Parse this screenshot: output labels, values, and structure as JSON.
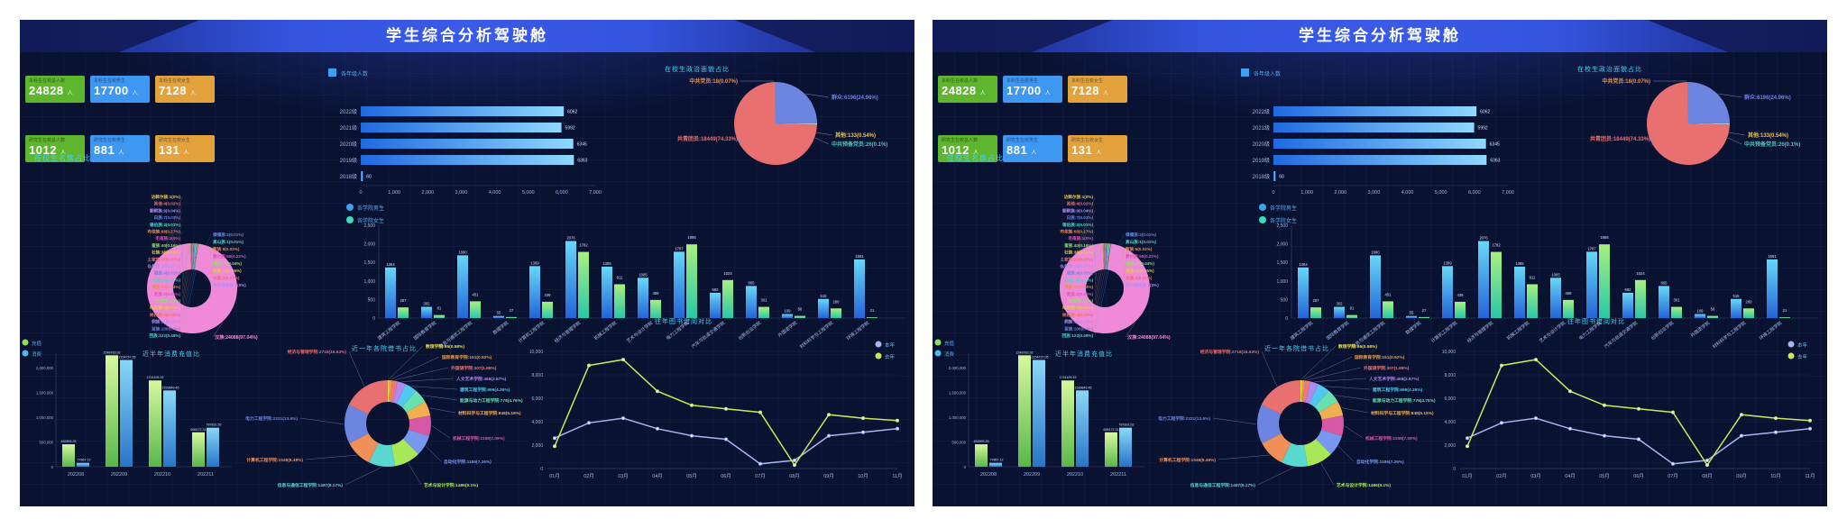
{
  "title": "学生综合分析驾驶舱",
  "unit_person": "人",
  "kpi_cards": [
    {
      "label": "本科生在校总人数",
      "value": "24828",
      "color": "green"
    },
    {
      "label": "本科生在校男生",
      "value": "17700",
      "color": "blue"
    },
    {
      "label": "本科生在校女生",
      "value": "7128",
      "color": "orange"
    },
    {
      "label": "研究生在校总人数",
      "value": "1012",
      "color": "green"
    },
    {
      "label": "研究生在校男生",
      "value": "881",
      "color": "blue"
    },
    {
      "label": "研究生在校女生",
      "value": "131",
      "color": "orange"
    }
  ],
  "chart_titles": {
    "politics": "在校生政治面貌占比",
    "ethnic": "在校生名族占比",
    "recharge": "近半年消费充值比",
    "borrow": "近一年各院借书占比",
    "library": "往年图书借阅对比"
  },
  "chart_data": [
    {
      "id": "grade",
      "type": "bar",
      "orientation": "horizontal",
      "legend": "各年级人数",
      "categories": [
        "2022级",
        "2021级",
        "2020级",
        "2019级",
        "2018级"
      ],
      "values": [
        6062,
        5992,
        6345,
        6363,
        60
      ],
      "xlim": [
        0,
        7000
      ],
      "xticks": [
        "0",
        "1,000",
        "2,000",
        "3,000",
        "4,000",
        "5,000",
        "6,000",
        "7,000"
      ]
    },
    {
      "id": "politics",
      "type": "pie",
      "title": "在校生政治面貌占比",
      "slices": [
        {
          "name": "群众",
          "value": 6196,
          "pct": "24.96%",
          "color": "#6b85e0"
        },
        {
          "name": "其他",
          "value": 133,
          "pct": "0.54%",
          "color": "#e8c84a"
        },
        {
          "name": "中共预备党员",
          "value": 26,
          "pct": "0.1%",
          "color": "#48c8b8"
        },
        {
          "name": "共青团员",
          "value": 18449,
          "pct": "74.33%",
          "color": "#e87070"
        },
        {
          "name": "中共党员",
          "value": 18,
          "pct": "0.07%",
          "color": "#e8904a"
        }
      ]
    },
    {
      "id": "ethnic",
      "type": "pie",
      "title": "在校生名族占比",
      "main_color": "#f08ad8",
      "slices": [
        {
          "name": "达斡尔族",
          "value": 1,
          "pct": "0%",
          "side": "L"
        },
        {
          "name": "其他",
          "value": 4,
          "pct": "0.02%",
          "side": "L"
        },
        {
          "name": "朝鲜族",
          "value": 9,
          "pct": "0.04%",
          "side": "L"
        },
        {
          "name": "白族",
          "value": 7,
          "pct": "0.03%",
          "side": "L"
        },
        {
          "name": "锡伯族",
          "value": 3,
          "pct": "0.01%",
          "side": "L"
        },
        {
          "name": "布依族",
          "value": 68,
          "pct": "0.27%",
          "side": "L"
        },
        {
          "name": "毛南族",
          "value": 1,
          "pct": "0%",
          "side": "L"
        },
        {
          "name": "畲族",
          "value": 40,
          "pct": "0.16%",
          "side": "L"
        },
        {
          "name": "壮族",
          "value": 38,
          "pct": "0.15%",
          "side": "L"
        },
        {
          "name": "土家族",
          "value": 92,
          "pct": "0.37%",
          "side": "L"
        },
        {
          "name": "仫佬族",
          "value": 18,
          "pct": "0.07%",
          "side": "L"
        },
        {
          "name": "瑶族",
          "value": 4,
          "pct": "0.02%",
          "side": "L"
        },
        {
          "name": "其他",
          "value": 14,
          "pct": "0.06%",
          "side": "L"
        },
        {
          "name": "满族",
          "value": 85,
          "pct": "0.34%",
          "side": "L"
        },
        {
          "name": "羌族",
          "value": 2,
          "pct": "0.01%",
          "side": "L"
        },
        {
          "name": "仡佬族",
          "value": 1,
          "pct": "0%",
          "side": "L"
        },
        {
          "name": "哈尼族",
          "value": 3,
          "pct": "0.01%",
          "side": "L"
        },
        {
          "name": "纳西族",
          "value": 4,
          "pct": "0.02%",
          "side": "L"
        },
        {
          "name": "侗族",
          "value": 31,
          "pct": "0.13%",
          "side": "L"
        },
        {
          "name": "苗族",
          "value": 100,
          "pct": "0.4%",
          "side": "L"
        },
        {
          "name": "回族",
          "value": 122,
          "pct": "0.49%",
          "side": "L"
        },
        {
          "name": "傈僳族",
          "value": 2,
          "pct": "0.01%",
          "side": "R"
        },
        {
          "name": "高山族",
          "value": 1,
          "pct": "0.01%",
          "side": "R"
        },
        {
          "name": "黎族",
          "value": 5,
          "pct": "0.02%",
          "side": "R"
        },
        {
          "name": "蒙古族",
          "value": 55,
          "pct": "0.22%",
          "side": "R"
        },
        {
          "name": "藏族",
          "value": 10,
          "pct": "0.04%",
          "side": "R"
        },
        {
          "name": "维族",
          "value": 11,
          "pct": "0.05%",
          "side": "R"
        },
        {
          "name": "水族",
          "value": 2,
          "pct": "0.01%",
          "side": "R"
        },
        {
          "name": "柯尔克孜族",
          "value": 1,
          "pct": "0%",
          "side": "R"
        },
        {
          "name": "汉族",
          "value": 24088,
          "pct": "97.04%",
          "side": "M"
        }
      ]
    },
    {
      "id": "college",
      "type": "bar",
      "legend": [
        "各学院男生",
        "各学院女生"
      ],
      "categories": [
        "建筑工程学院",
        "国际教育学院",
        "信息与通信工程学院",
        "数理学院",
        "计算机工程学院",
        "经济与管理学院",
        "机械工程学院",
        "艺术与设计学院",
        "电力工程学院",
        "汽车与轨道交通学院",
        "创新创业学院",
        "外国语学院",
        "材料科学与工程学院",
        "环境工程学院"
      ],
      "series": [
        {
          "name": "各学院男生",
          "values": [
            1364,
            302,
            1690,
            55,
            1399,
            2076,
            1385,
            1085,
            1787,
            682,
            865,
            109,
            515,
            1581
          ]
        },
        {
          "name": "各学院女生",
          "values": [
            287,
            81,
            451,
            27,
            439,
            1782,
            911,
            489,
            1986,
            1024,
            301,
            58,
            260,
            21
          ]
        }
      ],
      "ylim": [
        0,
        2500
      ],
      "yticks": [
        "0",
        "500",
        "1,000",
        "1,500",
        "2,000",
        "2,500"
      ]
    },
    {
      "id": "recharge",
      "type": "bar",
      "title": "近半年消费充值比",
      "categories": [
        "202208",
        "202209",
        "202210",
        "202211"
      ],
      "series": [
        {
          "name": "充值",
          "values": [
            452893.25,
            2248783.92,
            1741109.19,
            695172.31
          ],
          "labels": [
            "452893.25",
            "2248783.92",
            "1741109.19",
            "695172.31"
          ]
        },
        {
          "name": "消费",
          "values": [
            77867.12,
            2154737.05,
            1539849.45,
            787831.52
          ],
          "labels": [
            "77867.12",
            "2154737.05",
            "1539849.45",
            "787831.52"
          ]
        }
      ],
      "ylim": [
        0,
        2000000
      ],
      "yticks": [
        "0",
        "500,000",
        "1,000,000",
        "1,500,000",
        "2,000,000"
      ]
    },
    {
      "id": "borrow",
      "type": "pie",
      "title": "近一年各院借书占比",
      "slices": [
        {
          "name": "数理学院",
          "value": 95,
          "pct": "0.58%",
          "color": "#e8e04a"
        },
        {
          "name": "国际教育学院",
          "value": 151,
          "pct": "0.92%",
          "color": "#e8a04a"
        },
        {
          "name": "外国语学院",
          "value": 307,
          "pct": "1.88%",
          "color": "#f07878"
        },
        {
          "name": "人文艺术学院",
          "value": 468,
          "pct": "2.87%",
          "color": "#b088f0"
        },
        {
          "name": "建筑工程学院",
          "value": 696,
          "pct": "4.26%",
          "color": "#50c8f0"
        },
        {
          "name": "能源与动力工程学院",
          "value": 778,
          "pct": "4.76%",
          "color": "#68e0b0"
        },
        {
          "name": "材料科学与工程学院",
          "value": 848,
          "pct": "5.19%",
          "color": "#f0b050"
        },
        {
          "name": "机械工程学院",
          "value": 1158,
          "pct": "7.09%",
          "color": "#d858a8"
        },
        {
          "name": "自动化学院",
          "value": 1186,
          "pct": "7.26%",
          "color": "#7898f0"
        },
        {
          "name": "艺术与设计学院",
          "value": 1486,
          "pct": "9.1%",
          "color": "#a8e858"
        },
        {
          "name": "信息与通信工程学院",
          "value": 1497,
          "pct": "9.17%",
          "color": "#58d8d0"
        },
        {
          "name": "计算机工程学院",
          "value": 1548,
          "pct": "9.48%",
          "color": "#f09058"
        },
        {
          "name": "电力工程学院",
          "value": 2221,
          "pct": "13.6%",
          "color": "#6b85e0"
        },
        {
          "name": "经济与管理学院",
          "value": 2716,
          "pct": "16.63%",
          "color": "#e87070"
        }
      ]
    },
    {
      "id": "library",
      "type": "line",
      "title": "往年图书借阅对比",
      "x": [
        "01月",
        "02月",
        "03月",
        "04月",
        "05月",
        "06月",
        "07月",
        "08月",
        "09月",
        "10月",
        "11月"
      ],
      "series": [
        {
          "name": "本年",
          "color": "#a8b4f0",
          "values": [
            2600,
            3900,
            4300,
            3400,
            2800,
            2500,
            400,
            700,
            2800,
            3100,
            3400
          ]
        },
        {
          "name": "去年",
          "color": "#c8e858",
          "values": [
            1900,
            8800,
            9300,
            6600,
            5400,
            5100,
            4800,
            300,
            4600,
            4300,
            4100
          ]
        }
      ],
      "ylim": [
        0,
        10000
      ],
      "yticks": [
        "0",
        "2,000",
        "4,000",
        "6,000",
        "8,000",
        "10,000"
      ]
    }
  ]
}
